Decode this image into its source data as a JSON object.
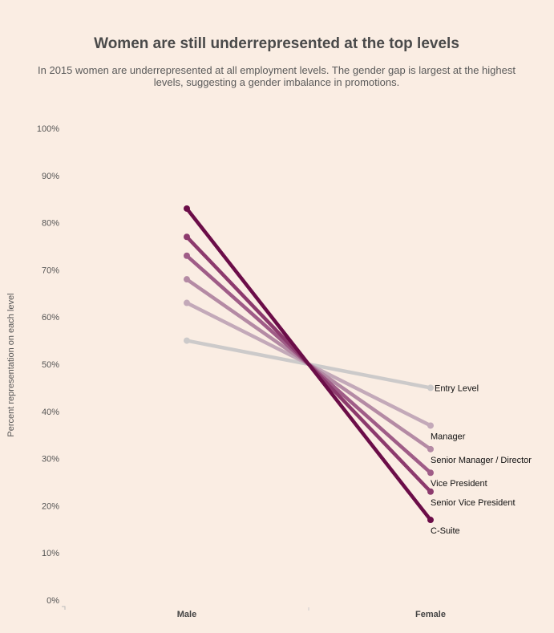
{
  "chart_data": {
    "type": "line",
    "title": "Women are still underrepresented at the top levels",
    "subtitle": [
      "In 2015 women are underrepresented at all employment levels. The gender gap is largest at the highest",
      "levels, suggesting a gender imbalance in promotions."
    ],
    "ylabel": "Percent representation on each level",
    "xlabel": "",
    "categories": [
      "Male",
      "Female"
    ],
    "ylim": [
      0,
      100
    ],
    "yticks": [
      "0%",
      "10%",
      "20%",
      "30%",
      "40%",
      "50%",
      "60%",
      "70%",
      "80%",
      "90%",
      "100%"
    ],
    "grid": false,
    "series": [
      {
        "name": "Entry Level",
        "values": [
          55,
          45
        ],
        "color": "#cccaca"
      },
      {
        "name": "Manager",
        "values": [
          63,
          37
        ],
        "color": "#c3a9b9"
      },
      {
        "name": "Senior Manager / Director",
        "values": [
          68,
          32
        ],
        "color": "#b48aa4"
      },
      {
        "name": "Vice President",
        "values": [
          73,
          27
        ],
        "color": "#9f5c87"
      },
      {
        "name": "Senior Vice President",
        "values": [
          77,
          23
        ],
        "color": "#8c3a6d"
      },
      {
        "name": "C-Suite",
        "values": [
          83,
          17
        ],
        "color": "#6b0d48"
      }
    ]
  }
}
